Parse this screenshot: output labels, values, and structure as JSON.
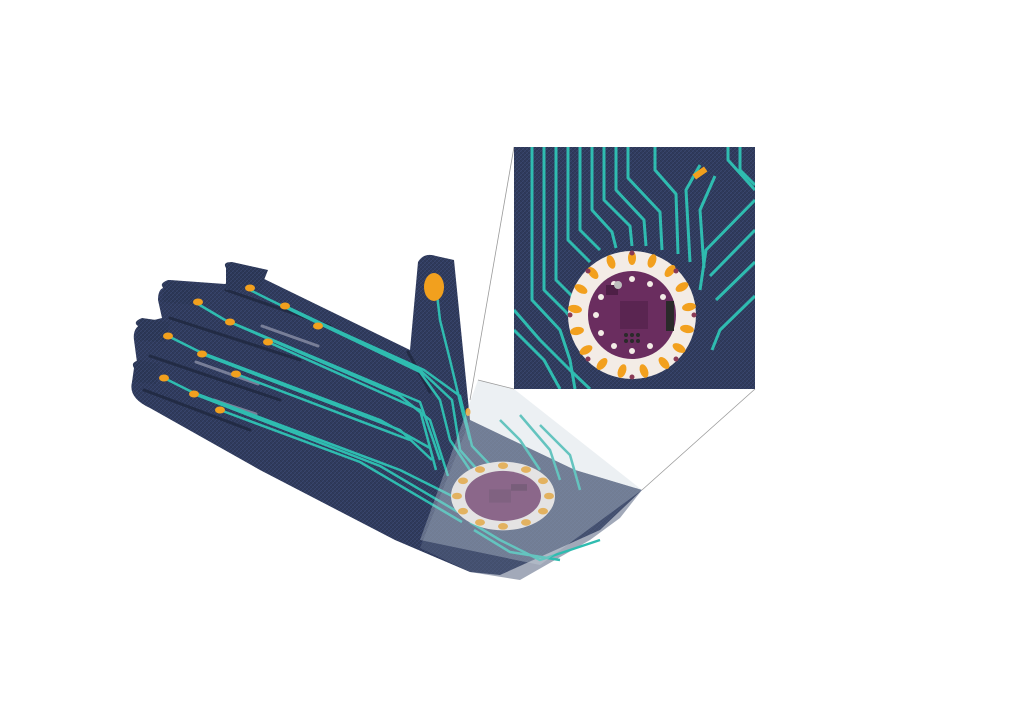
{
  "colors": {
    "background": "#ffffff",
    "denim": "#2f3a5b",
    "denim_dark": "#232c47",
    "denim_edge": "#1d2438",
    "trace": "#2fbcb0",
    "pad": "#f2a01e",
    "board": "#6a2d5f",
    "board_ring": "#f3ece6",
    "board_dark": "#4e1f46",
    "header": "#2a2a2a",
    "connector_line": "#9a9a9a",
    "glass": "#c9d3de"
  },
  "icons": {
    "glove": "smart-glove-icon",
    "microcontroller": "lilypad-board-icon",
    "thumb_pad": "sensor-pad-icon"
  }
}
